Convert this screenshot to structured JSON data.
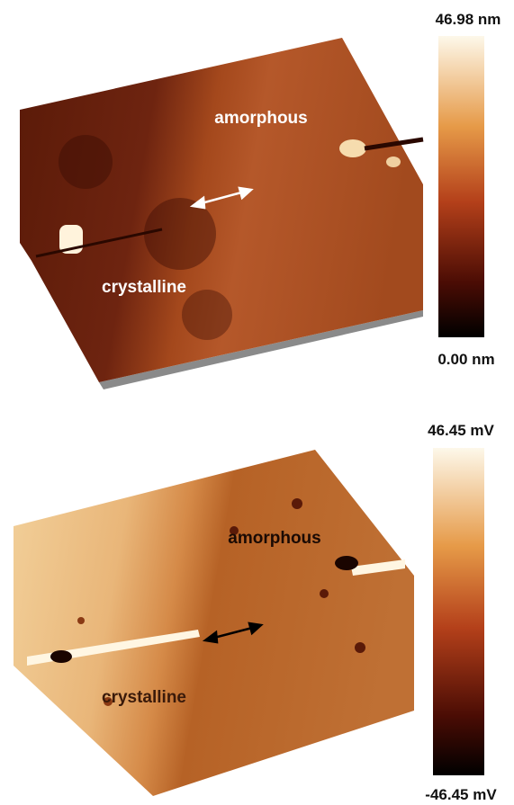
{
  "panels": [
    {
      "labels": {
        "amorphous": "amorphous",
        "crystalline": "crystalline"
      },
      "colorbar": {
        "max": "46.98 nm",
        "min": "0.00 nm"
      }
    },
    {
      "labels": {
        "amorphous": "amorphous",
        "crystalline": "crystalline"
      },
      "colorbar": {
        "max": "46.45 mV",
        "min": "-46.45 mV"
      }
    }
  ]
}
